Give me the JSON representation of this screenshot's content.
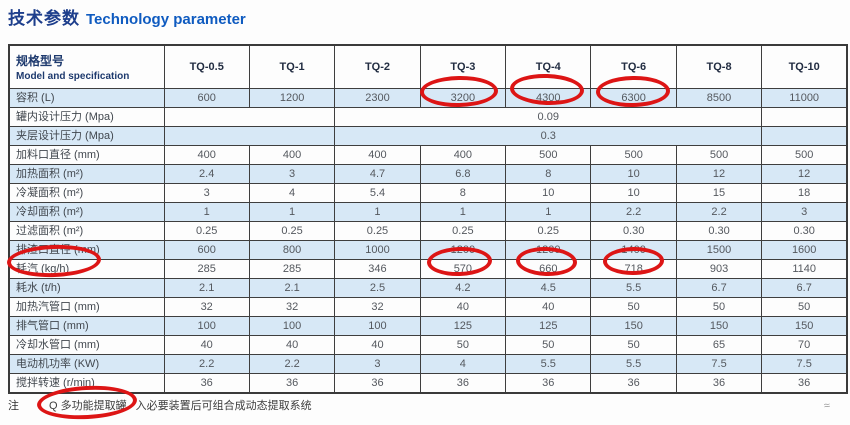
{
  "title": {
    "zh": "技术参数",
    "en": "Technology parameter"
  },
  "table": {
    "header": {
      "model_label_zh": "规格型号",
      "model_label_en": "Model and specification",
      "columns": [
        "TQ-0.5",
        "TQ-1",
        "TQ-2",
        "TQ-3",
        "TQ-4",
        "TQ-6",
        "TQ-8",
        "TQ-10"
      ]
    },
    "rows": [
      {
        "label": "容积 (L)",
        "values": [
          "600",
          "1200",
          "2300",
          "3200",
          "4300",
          "6300",
          "8500",
          "11000"
        ]
      },
      {
        "label": "罐内设计压力 (Mpa)",
        "merged": "0.09"
      },
      {
        "label": "夹层设计压力 (Mpa)",
        "merged": "0.3"
      },
      {
        "label": "加料口直径 (mm)",
        "values": [
          "400",
          "400",
          "400",
          "400",
          "500",
          "500",
          "500",
          "500"
        ]
      },
      {
        "label": "加热面积 (m²)",
        "values": [
          "2.4",
          "3",
          "4.7",
          "6.8",
          "8",
          "10",
          "12",
          "12"
        ]
      },
      {
        "label": "冷凝面积 (m²)",
        "values": [
          "3",
          "4",
          "5.4",
          "8",
          "10",
          "10",
          "15",
          "18"
        ]
      },
      {
        "label": "冷却面积 (m²)",
        "values": [
          "1",
          "1",
          "1",
          "1",
          "1",
          "2.2",
          "2.2",
          "3"
        ]
      },
      {
        "label": "过滤面积 (m²)",
        "values": [
          "0.25",
          "0.25",
          "0.25",
          "0.25",
          "0.25",
          "0.30",
          "0.30",
          "0.30"
        ]
      },
      {
        "label": "排渣口直径 (mm)",
        "values": [
          "600",
          "800",
          "1000",
          "1200",
          "1200",
          "1400",
          "1500",
          "1600"
        ]
      },
      {
        "label": "耗汽 (kg/h)",
        "values": [
          "285",
          "285",
          "346",
          "570",
          "660",
          "718",
          "903",
          "1140"
        ]
      },
      {
        "label": "耗水 (t/h)",
        "values": [
          "2.1",
          "2.1",
          "2.5",
          "4.2",
          "4.5",
          "5.5",
          "6.7",
          "6.7"
        ]
      },
      {
        "label": "加热汽管口 (mm)",
        "values": [
          "32",
          "32",
          "32",
          "40",
          "40",
          "50",
          "50",
          "50"
        ]
      },
      {
        "label": "排气管口 (mm)",
        "values": [
          "100",
          "100",
          "100",
          "125",
          "125",
          "150",
          "150",
          "150"
        ]
      },
      {
        "label": "冷却水管口 (mm)",
        "values": [
          "40",
          "40",
          "40",
          "50",
          "50",
          "50",
          "65",
          "70"
        ]
      },
      {
        "label": "电动机功率 (KW)",
        "values": [
          "2.2",
          "2.2",
          "3",
          "4",
          "5.5",
          "5.5",
          "7.5",
          "7.5"
        ]
      },
      {
        "label": "搅拌转速 (r/min)",
        "values": [
          "36",
          "36",
          "36",
          "36",
          "36",
          "36",
          "36",
          "36"
        ]
      }
    ]
  },
  "note": {
    "prefix": "注",
    "circled": "Q 多功能提取罐",
    "rest": "入必要装置后可组合成动态提取系统"
  },
  "annotations": {
    "circle_color": "#dd1515",
    "circled_items": [
      "3200",
      "4300",
      "6300",
      "耗汽 (kg/h)",
      "570",
      "660",
      "718",
      "Q 多功能提取罐"
    ]
  },
  "colors": {
    "title_zh": "#1d3e8c",
    "title_en": "#0f5bc0",
    "row_stripe_blue": "#d7e8f6",
    "table_border": "#3e3e3e",
    "cell_text": "#54585e"
  },
  "watermark_glyph": "≈"
}
